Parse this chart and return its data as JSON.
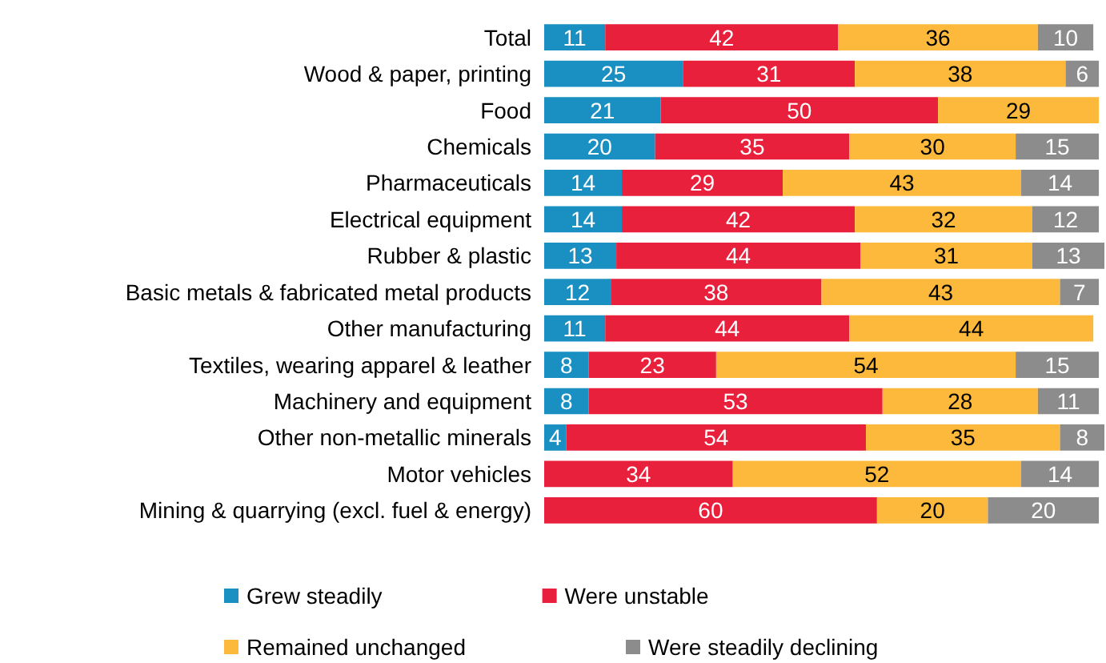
{
  "chart_data": {
    "type": "bar",
    "orientation": "horizontal",
    "stacked": true,
    "data_labels": true,
    "legend": "bottom",
    "tick_labels": "y",
    "xlim": [
      0,
      101
    ],
    "categories": [
      "Total",
      "Wood & paper, printing",
      "Food",
      "Chemicals",
      "Pharmaceuticals",
      "Electrical equipment",
      "Rubber & plastic",
      "Basic metals & fabricated metal products",
      "Other manufacturing",
      "Textiles, wearing apparel & leather",
      "Machinery and equipment",
      "Other non-metallic minerals",
      "Motor vehicles",
      "Mining & quarrying (excl. fuel & energy)"
    ],
    "series": [
      {
        "name": "Grew steadily",
        "color": "#1a8fc1",
        "values": [
          11,
          25,
          21,
          20,
          14,
          14,
          13,
          12,
          11,
          8,
          8,
          4,
          null,
          null
        ]
      },
      {
        "name": "Were unstable",
        "color": "#e8203b",
        "values": [
          42,
          31,
          50,
          35,
          29,
          42,
          44,
          38,
          44,
          23,
          53,
          54,
          34,
          60
        ]
      },
      {
        "name": "Remained unchanged",
        "color": "#fdb93b",
        "values": [
          36,
          38,
          29,
          30,
          43,
          32,
          31,
          43,
          44,
          54,
          28,
          35,
          52,
          20
        ]
      },
      {
        "name": "Were steadily declining",
        "color": "#8c8c8c",
        "values": [
          10,
          6,
          null,
          15,
          14,
          12,
          13,
          7,
          null,
          15,
          11,
          8,
          14,
          20
        ]
      }
    ]
  }
}
